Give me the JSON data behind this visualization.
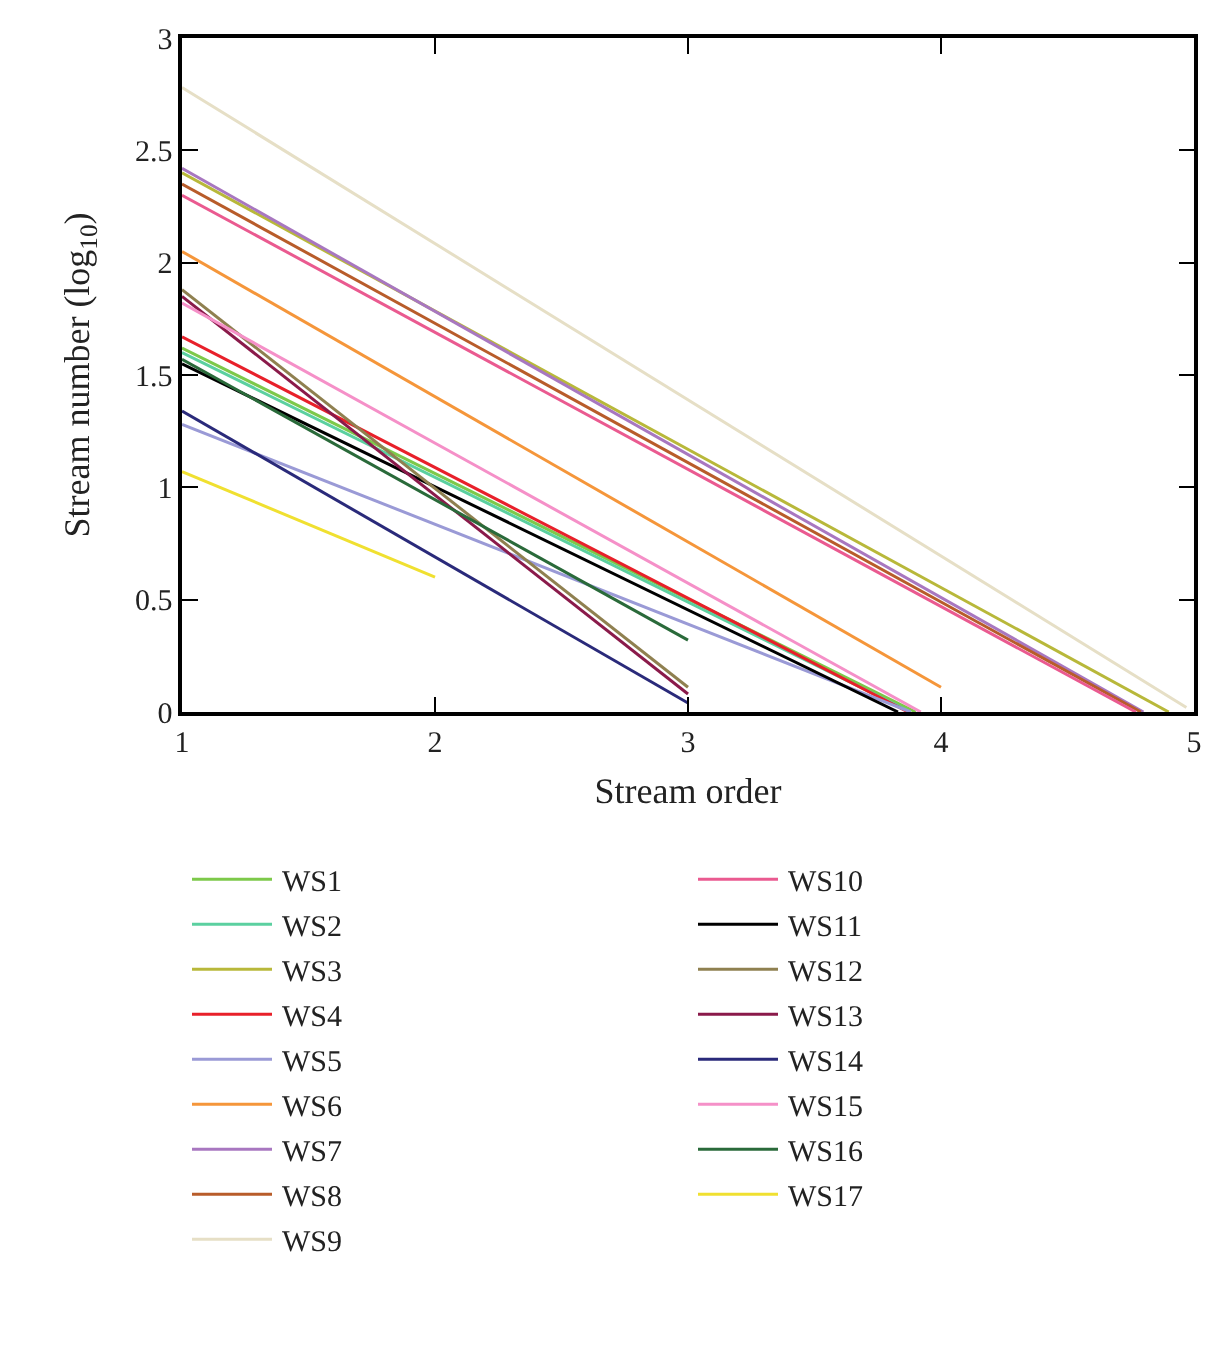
{
  "chart_data": {
    "type": "line",
    "xlabel": "Stream order",
    "ylabel": "Stream number (log$_{10}$)",
    "xlim": [
      1,
      5
    ],
    "xticks": [
      1,
      2,
      3,
      4,
      5
    ],
    "ylim": [
      0,
      3
    ],
    "yticks": [
      0,
      0.5,
      1,
      1.5,
      2,
      2.5,
      3
    ],
    "grid": false,
    "legend": "bottom",
    "marker": "none",
    "line_style": "solid",
    "series": [
      {
        "name": "WS1",
        "color": "#7dc94a",
        "x": [
          1,
          3.9
        ],
        "values": [
          1.62,
          0
        ]
      },
      {
        "name": "WS2",
        "color": "#5bd0a0",
        "x": [
          1,
          3.88
        ],
        "values": [
          1.6,
          0
        ]
      },
      {
        "name": "WS3",
        "color": "#b8b83a",
        "x": [
          1,
          4.9
        ],
        "values": [
          2.4,
          0
        ]
      },
      {
        "name": "WS4",
        "color": "#e8202a",
        "x": [
          1,
          3.87
        ],
        "values": [
          1.67,
          0
        ]
      },
      {
        "name": "WS5",
        "color": "#9a9ad6",
        "x": [
          1,
          3.88
        ],
        "values": [
          1.28,
          0
        ]
      },
      {
        "name": "WS6",
        "color": "#f5963a",
        "x": [
          1,
          4
        ],
        "values": [
          2.05,
          0.11
        ]
      },
      {
        "name": "WS7",
        "color": "#a877c0",
        "x": [
          1,
          4.8
        ],
        "values": [
          2.42,
          0
        ]
      },
      {
        "name": "WS8",
        "color": "#b85c2a",
        "x": [
          1,
          4.79
        ],
        "values": [
          2.35,
          0
        ]
      },
      {
        "name": "WS9",
        "color": "#e6dfc6",
        "x": [
          1,
          4.97
        ],
        "values": [
          2.78,
          0.02
        ]
      },
      {
        "name": "WS10",
        "color": "#ea5a90",
        "x": [
          1,
          4.77
        ],
        "values": [
          2.3,
          0
        ]
      },
      {
        "name": "WS11",
        "color": "#000000",
        "x": [
          1,
          3.83
        ],
        "values": [
          1.55,
          0
        ]
      },
      {
        "name": "WS12",
        "color": "#8f8050",
        "x": [
          1,
          3
        ],
        "values": [
          1.88,
          0.11
        ]
      },
      {
        "name": "WS13",
        "color": "#8a1a4a",
        "x": [
          1,
          3
        ],
        "values": [
          1.85,
          0.08
        ]
      },
      {
        "name": "WS14",
        "color": "#2a2a7a",
        "x": [
          1,
          3
        ],
        "values": [
          1.34,
          0.04
        ]
      },
      {
        "name": "WS15",
        "color": "#f590c8",
        "x": [
          1,
          3.92
        ],
        "values": [
          1.82,
          0
        ]
      },
      {
        "name": "WS16",
        "color": "#2a6a3a",
        "x": [
          1,
          3
        ],
        "values": [
          1.57,
          0.32
        ]
      },
      {
        "name": "WS17",
        "color": "#f0e030",
        "x": [
          1,
          2
        ],
        "values": [
          1.07,
          0.6
        ]
      }
    ]
  }
}
